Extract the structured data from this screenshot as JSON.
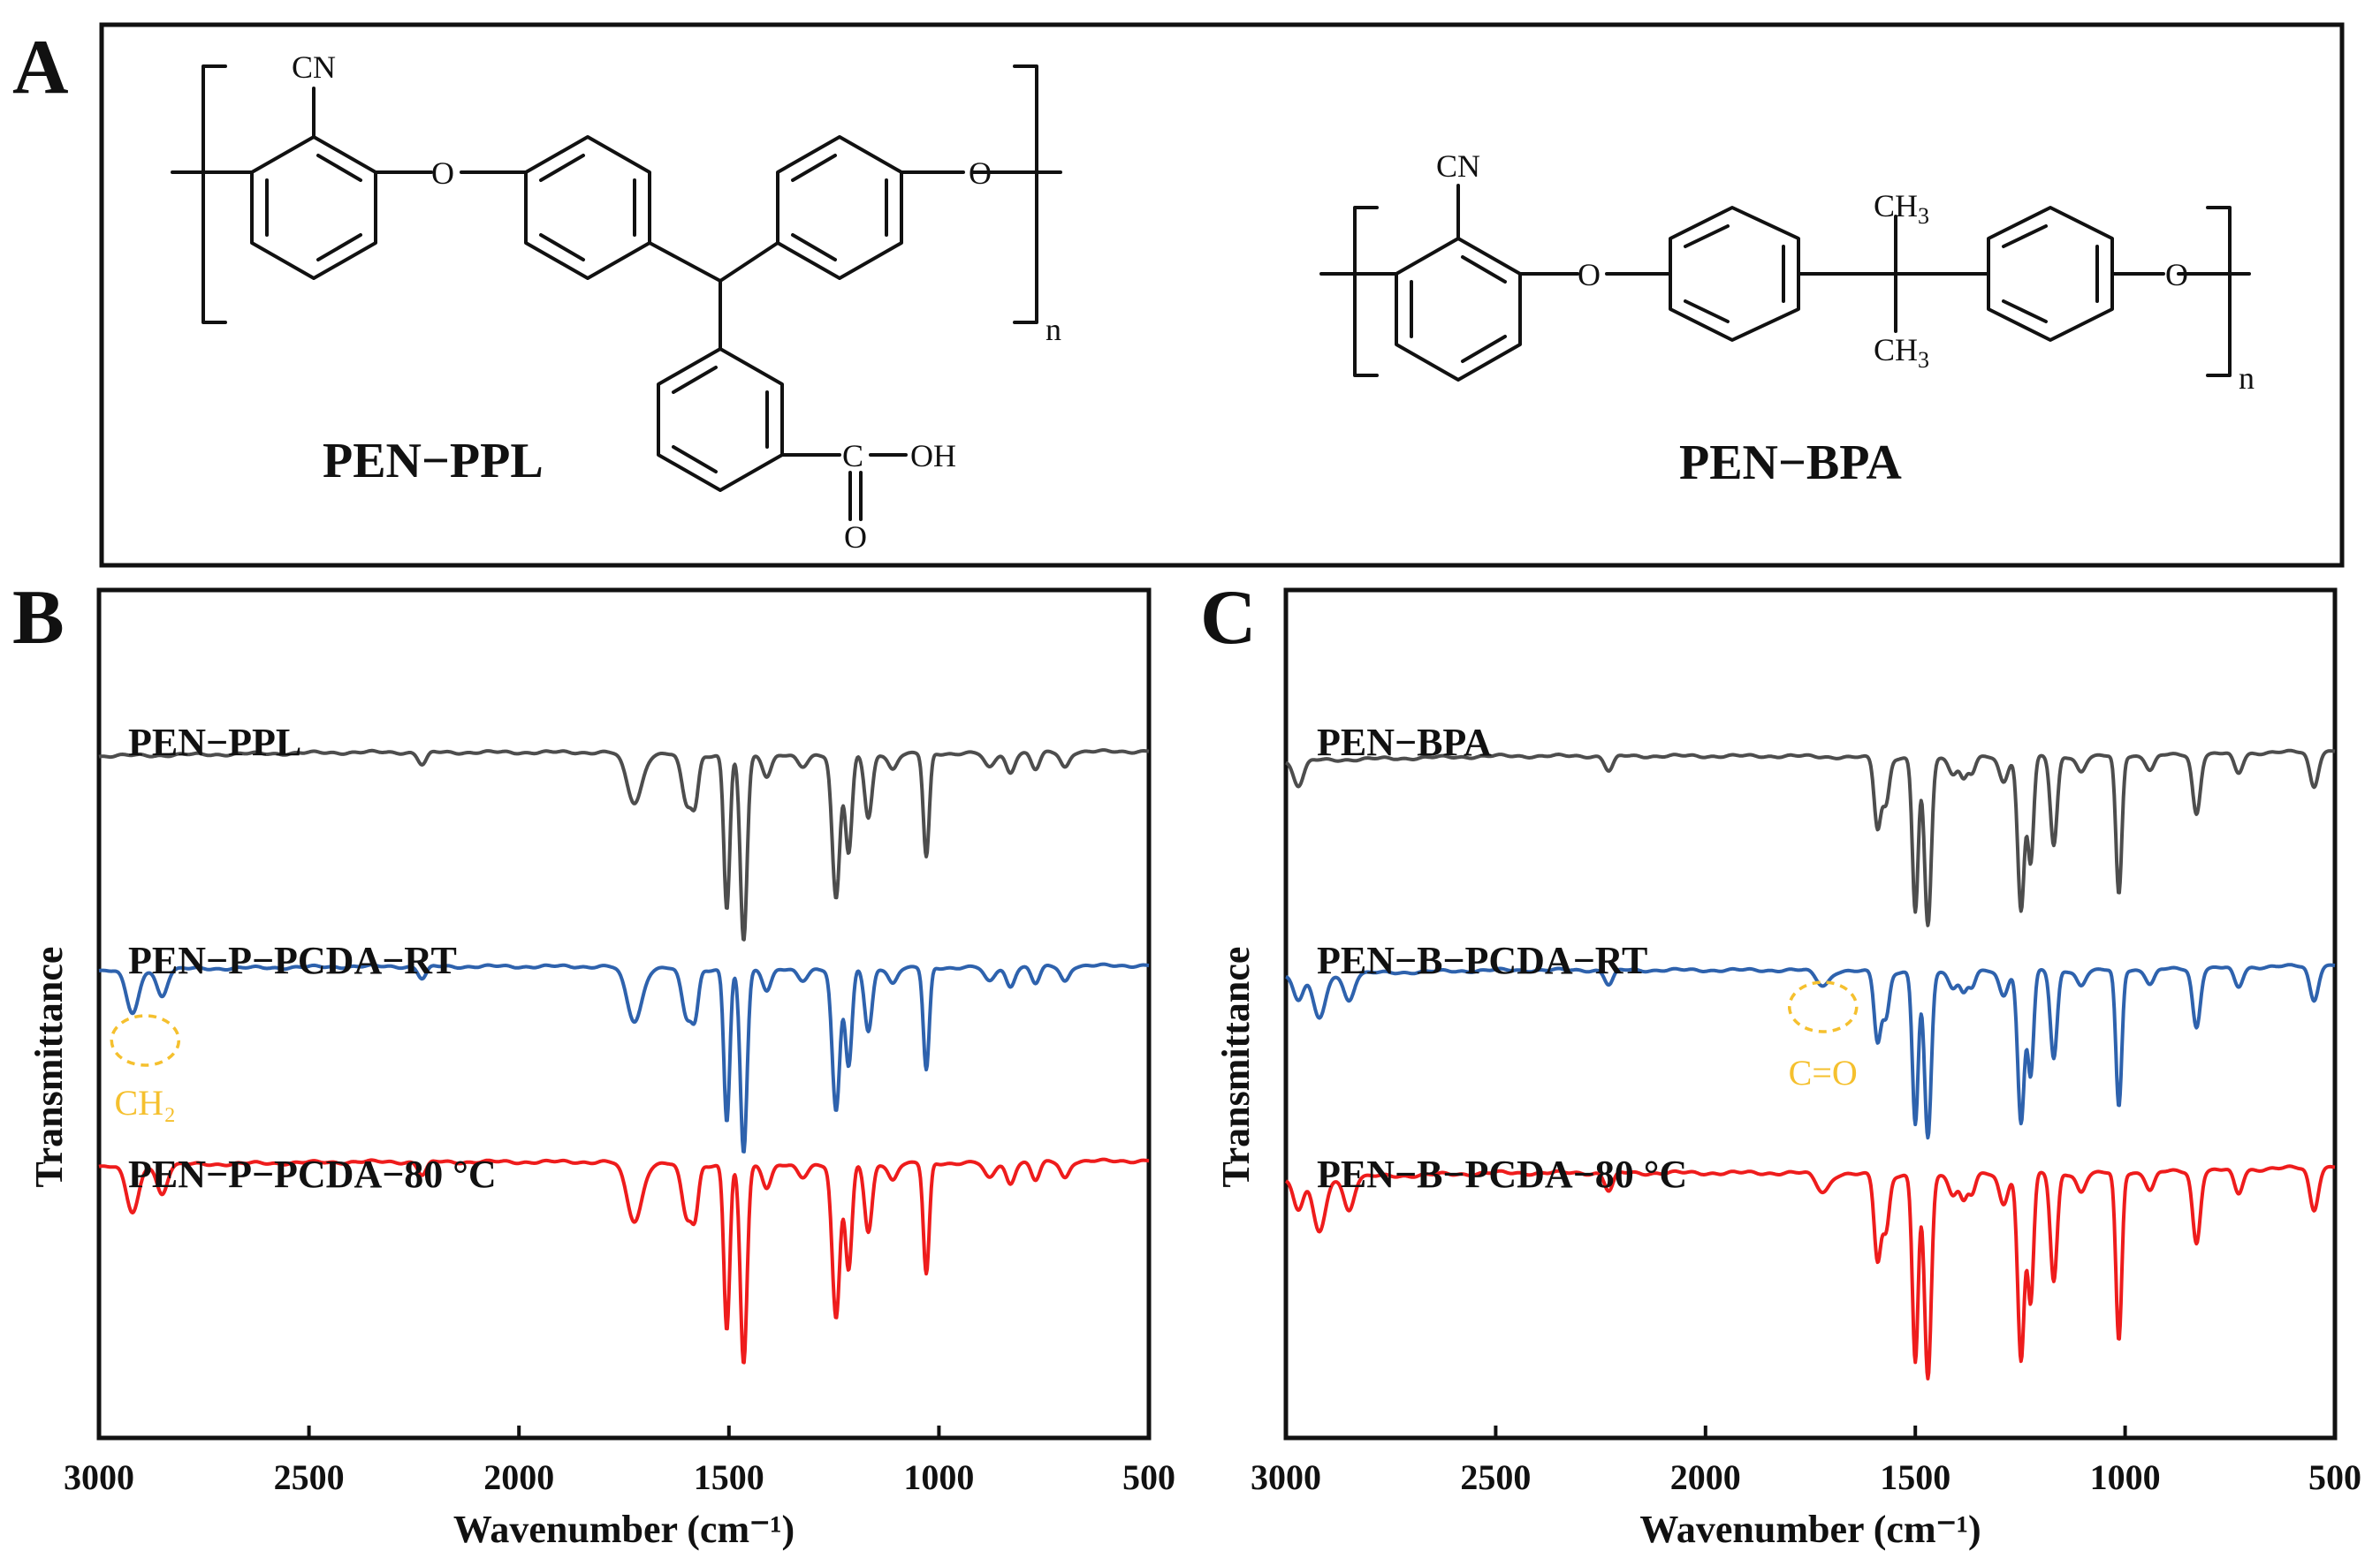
{
  "panel_labels": {
    "a": "A",
    "b": "B",
    "c": "C"
  },
  "structures": {
    "ppl": {
      "name": "PEN−PPL",
      "cn": "CN",
      "o_left": "O",
      "o_right": "O",
      "c": "C",
      "oh": "OH",
      "o_carbonyl": "O",
      "n": "n"
    },
    "bpa": {
      "name": "PEN−BPA",
      "cn": "CN",
      "o_left": "O",
      "o_right": "O",
      "ch3_top": "CH",
      "ch3_bottom": "CH",
      "sub3": "3",
      "n": "n"
    }
  },
  "colors": {
    "pristine": "#4d4d4d",
    "rt": "#2e62ad",
    "heated": "#ee1c1c",
    "annotation": "#f5c02e"
  },
  "chart_data": [
    {
      "panel": "B",
      "type": "line",
      "xlabel": "Wavenumber (cm⁻¹)",
      "ylabel": "Transmittance",
      "xlim": [
        3000,
        500
      ],
      "x_reversed": true,
      "xticks": [
        "3000",
        "2500",
        "2000",
        "1500",
        "1000",
        "500"
      ],
      "annotation": {
        "label": "CH₂",
        "x": 2890
      },
      "series": [
        {
          "name": "PEN−PPL",
          "color_key": "pristine",
          "baseline": [
            [
              3000,
              0.8
            ],
            [
              2400,
              0.815
            ],
            [
              1800,
              0.815
            ],
            [
              1500,
              0.8
            ],
            [
              1000,
              0.81
            ],
            [
              500,
              0.82
            ]
          ],
          "peaks": [
            [
              2230,
              0.05,
              10
            ],
            [
              1725,
              0.2,
              18
            ],
            [
              1600,
              0.2,
              12
            ],
            [
              1580,
              0.16,
              8
            ],
            [
              1505,
              0.62,
              7
            ],
            [
              1465,
              0.75,
              8
            ],
            [
              1410,
              0.08,
              10
            ],
            [
              1325,
              0.05,
              12
            ],
            [
              1245,
              0.58,
              9
            ],
            [
              1215,
              0.4,
              8
            ],
            [
              1168,
              0.26,
              9
            ],
            [
              1110,
              0.06,
              10
            ],
            [
              1030,
              0.42,
              7
            ],
            [
              880,
              0.06,
              12
            ],
            [
              830,
              0.08,
              10
            ],
            [
              770,
              0.07,
              10
            ],
            [
              700,
              0.06,
              10
            ]
          ]
        },
        {
          "name": "PEN−P−PCDA−RT",
          "color_key": "rt",
          "baseline": [
            [
              3000,
              0.8
            ],
            [
              2400,
              0.815
            ],
            [
              1800,
              0.815
            ],
            [
              1500,
              0.8
            ],
            [
              1000,
              0.81
            ],
            [
              500,
              0.82
            ]
          ],
          "peaks": [
            [
              2920,
              0.18,
              15
            ],
            [
              2850,
              0.11,
              12
            ],
            [
              2230,
              0.05,
              10
            ],
            [
              1725,
              0.22,
              18
            ],
            [
              1600,
              0.2,
              12
            ],
            [
              1580,
              0.16,
              8
            ],
            [
              1505,
              0.62,
              7
            ],
            [
              1465,
              0.75,
              8
            ],
            [
              1410,
              0.08,
              10
            ],
            [
              1325,
              0.05,
              12
            ],
            [
              1245,
              0.58,
              9
            ],
            [
              1215,
              0.4,
              8
            ],
            [
              1168,
              0.26,
              9
            ],
            [
              1110,
              0.06,
              10
            ],
            [
              1030,
              0.42,
              7
            ],
            [
              880,
              0.06,
              12
            ],
            [
              830,
              0.08,
              10
            ],
            [
              770,
              0.07,
              10
            ],
            [
              700,
              0.06,
              10
            ]
          ]
        },
        {
          "name": "PEN−P−PCDA−80 °C",
          "color_key": "heated",
          "baseline": [
            [
              3000,
              0.8
            ],
            [
              2400,
              0.815
            ],
            [
              1800,
              0.815
            ],
            [
              1500,
              0.8
            ],
            [
              1000,
              0.81
            ],
            [
              500,
              0.82
            ]
          ],
          "peaks": [
            [
              2920,
              0.18,
              15
            ],
            [
              2850,
              0.11,
              12
            ],
            [
              2230,
              0.05,
              10
            ],
            [
              1725,
              0.22,
              18
            ],
            [
              1600,
              0.2,
              12
            ],
            [
              1580,
              0.16,
              8
            ],
            [
              1505,
              0.62,
              7
            ],
            [
              1465,
              0.75,
              8
            ],
            [
              1410,
              0.08,
              10
            ],
            [
              1325,
              0.05,
              12
            ],
            [
              1245,
              0.58,
              9
            ],
            [
              1215,
              0.4,
              8
            ],
            [
              1168,
              0.26,
              9
            ],
            [
              1110,
              0.06,
              10
            ],
            [
              1030,
              0.42,
              7
            ],
            [
              880,
              0.06,
              12
            ],
            [
              830,
              0.08,
              10
            ],
            [
              770,
              0.07,
              10
            ],
            [
              700,
              0.06,
              10
            ]
          ]
        }
      ]
    },
    {
      "panel": "C",
      "type": "line",
      "xlabel": "Wavenumber (cm⁻¹)",
      "ylabel": "Transmittance",
      "xlim": [
        3000,
        500
      ],
      "x_reversed": true,
      "xticks": [
        "3000",
        "2500",
        "2000",
        "1500",
        "1000",
        "500"
      ],
      "annotation": {
        "label": "C=O",
        "x": 1720
      },
      "series": [
        {
          "name": "PEN−BPA",
          "color_key": "pristine",
          "baseline": [
            [
              3000,
              0.78
            ],
            [
              2500,
              0.8
            ],
            [
              1800,
              0.8
            ],
            [
              1500,
              0.79
            ],
            [
              1000,
              0.8
            ],
            [
              500,
              0.82
            ]
          ],
          "peaks": [
            [
              2970,
              0.1,
              12
            ],
            [
              2230,
              0.06,
              10
            ],
            [
              1590,
              0.28,
              8
            ],
            [
              1570,
              0.18,
              8
            ],
            [
              1500,
              0.62,
              7
            ],
            [
              1470,
              0.68,
              8
            ],
            [
              1410,
              0.06,
              10
            ],
            [
              1385,
              0.08,
              8
            ],
            [
              1365,
              0.06,
              8
            ],
            [
              1290,
              0.1,
              10
            ],
            [
              1248,
              0.62,
              8
            ],
            [
              1225,
              0.42,
              7
            ],
            [
              1170,
              0.36,
              8
            ],
            [
              1105,
              0.06,
              10
            ],
            [
              1015,
              0.56,
              7
            ],
            [
              940,
              0.06,
              10
            ],
            [
              830,
              0.24,
              9
            ],
            [
              730,
              0.08,
              10
            ],
            [
              550,
              0.14,
              10
            ]
          ]
        },
        {
          "name": "PEN−B−PCDA−RT",
          "color_key": "rt",
          "baseline": [
            [
              3000,
              0.78
            ],
            [
              2500,
              0.8
            ],
            [
              1800,
              0.8
            ],
            [
              1500,
              0.79
            ],
            [
              1000,
              0.8
            ],
            [
              500,
              0.82
            ]
          ],
          "peaks": [
            [
              2970,
              0.1,
              12
            ],
            [
              2920,
              0.18,
              15
            ],
            [
              2850,
              0.11,
              12
            ],
            [
              2230,
              0.06,
              10
            ],
            [
              1720,
              0.06,
              15
            ],
            [
              1590,
              0.28,
              8
            ],
            [
              1570,
              0.18,
              8
            ],
            [
              1500,
              0.62,
              7
            ],
            [
              1470,
              0.68,
              8
            ],
            [
              1410,
              0.06,
              10
            ],
            [
              1385,
              0.08,
              8
            ],
            [
              1365,
              0.06,
              8
            ],
            [
              1290,
              0.1,
              10
            ],
            [
              1248,
              0.62,
              8
            ],
            [
              1225,
              0.42,
              7
            ],
            [
              1170,
              0.36,
              8
            ],
            [
              1105,
              0.06,
              10
            ],
            [
              1015,
              0.56,
              7
            ],
            [
              940,
              0.06,
              10
            ],
            [
              830,
              0.24,
              9
            ],
            [
              730,
              0.08,
              10
            ],
            [
              550,
              0.14,
              10
            ]
          ]
        },
        {
          "name": "PEN−B−PCDA−80 °C",
          "color_key": "heated",
          "baseline": [
            [
              3000,
              0.78
            ],
            [
              2500,
              0.8
            ],
            [
              1800,
              0.8
            ],
            [
              1500,
              0.79
            ],
            [
              1000,
              0.8
            ],
            [
              500,
              0.82
            ]
          ],
          "peaks": [
            [
              2970,
              0.1,
              12
            ],
            [
              2920,
              0.18,
              15
            ],
            [
              2850,
              0.11,
              12
            ],
            [
              2230,
              0.06,
              10
            ],
            [
              1720,
              0.06,
              15
            ],
            [
              1590,
              0.28,
              8
            ],
            [
              1570,
              0.18,
              8
            ],
            [
              1500,
              0.62,
              7
            ],
            [
              1470,
              0.68,
              8
            ],
            [
              1410,
              0.06,
              10
            ],
            [
              1385,
              0.08,
              8
            ],
            [
              1365,
              0.06,
              8
            ],
            [
              1290,
              0.1,
              10
            ],
            [
              1248,
              0.62,
              8
            ],
            [
              1225,
              0.42,
              7
            ],
            [
              1170,
              0.36,
              8
            ],
            [
              1105,
              0.06,
              10
            ],
            [
              1015,
              0.56,
              7
            ],
            [
              940,
              0.06,
              10
            ],
            [
              830,
              0.24,
              9
            ],
            [
              730,
              0.08,
              10
            ],
            [
              550,
              0.14,
              10
            ]
          ]
        }
      ]
    }
  ]
}
